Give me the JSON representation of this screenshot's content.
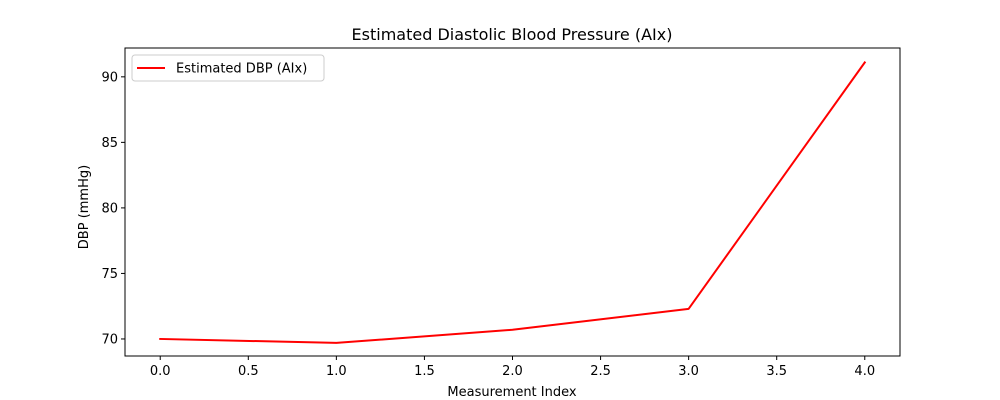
{
  "chart_data": {
    "type": "line",
    "title": "Estimated Diastolic Blood Pressure (AIx)",
    "xlabel": "Measurement Index",
    "ylabel": "DBP (mmHg)",
    "x": [
      0,
      1,
      2,
      3,
      4
    ],
    "series": [
      {
        "name": "Estimated DBP (AIx)",
        "values": [
          70.0,
          69.7,
          70.7,
          72.3,
          91.1
        ],
        "color": "#ff0000"
      }
    ],
    "xlim": [
      -0.2,
      4.2
    ],
    "ylim": [
      68.7,
      92.2
    ],
    "x_ticks": [
      0.0,
      0.5,
      1.0,
      1.5,
      2.0,
      2.5,
      3.0,
      3.5,
      4.0
    ],
    "x_tick_labels": [
      "0.0",
      "0.5",
      "1.0",
      "1.5",
      "2.0",
      "2.5",
      "3.0",
      "3.5",
      "4.0"
    ],
    "y_ticks": [
      70,
      75,
      80,
      85,
      90
    ],
    "y_tick_labels": [
      "70",
      "75",
      "80",
      "85",
      "90"
    ],
    "grid": false,
    "legend_position": "top-left"
  }
}
